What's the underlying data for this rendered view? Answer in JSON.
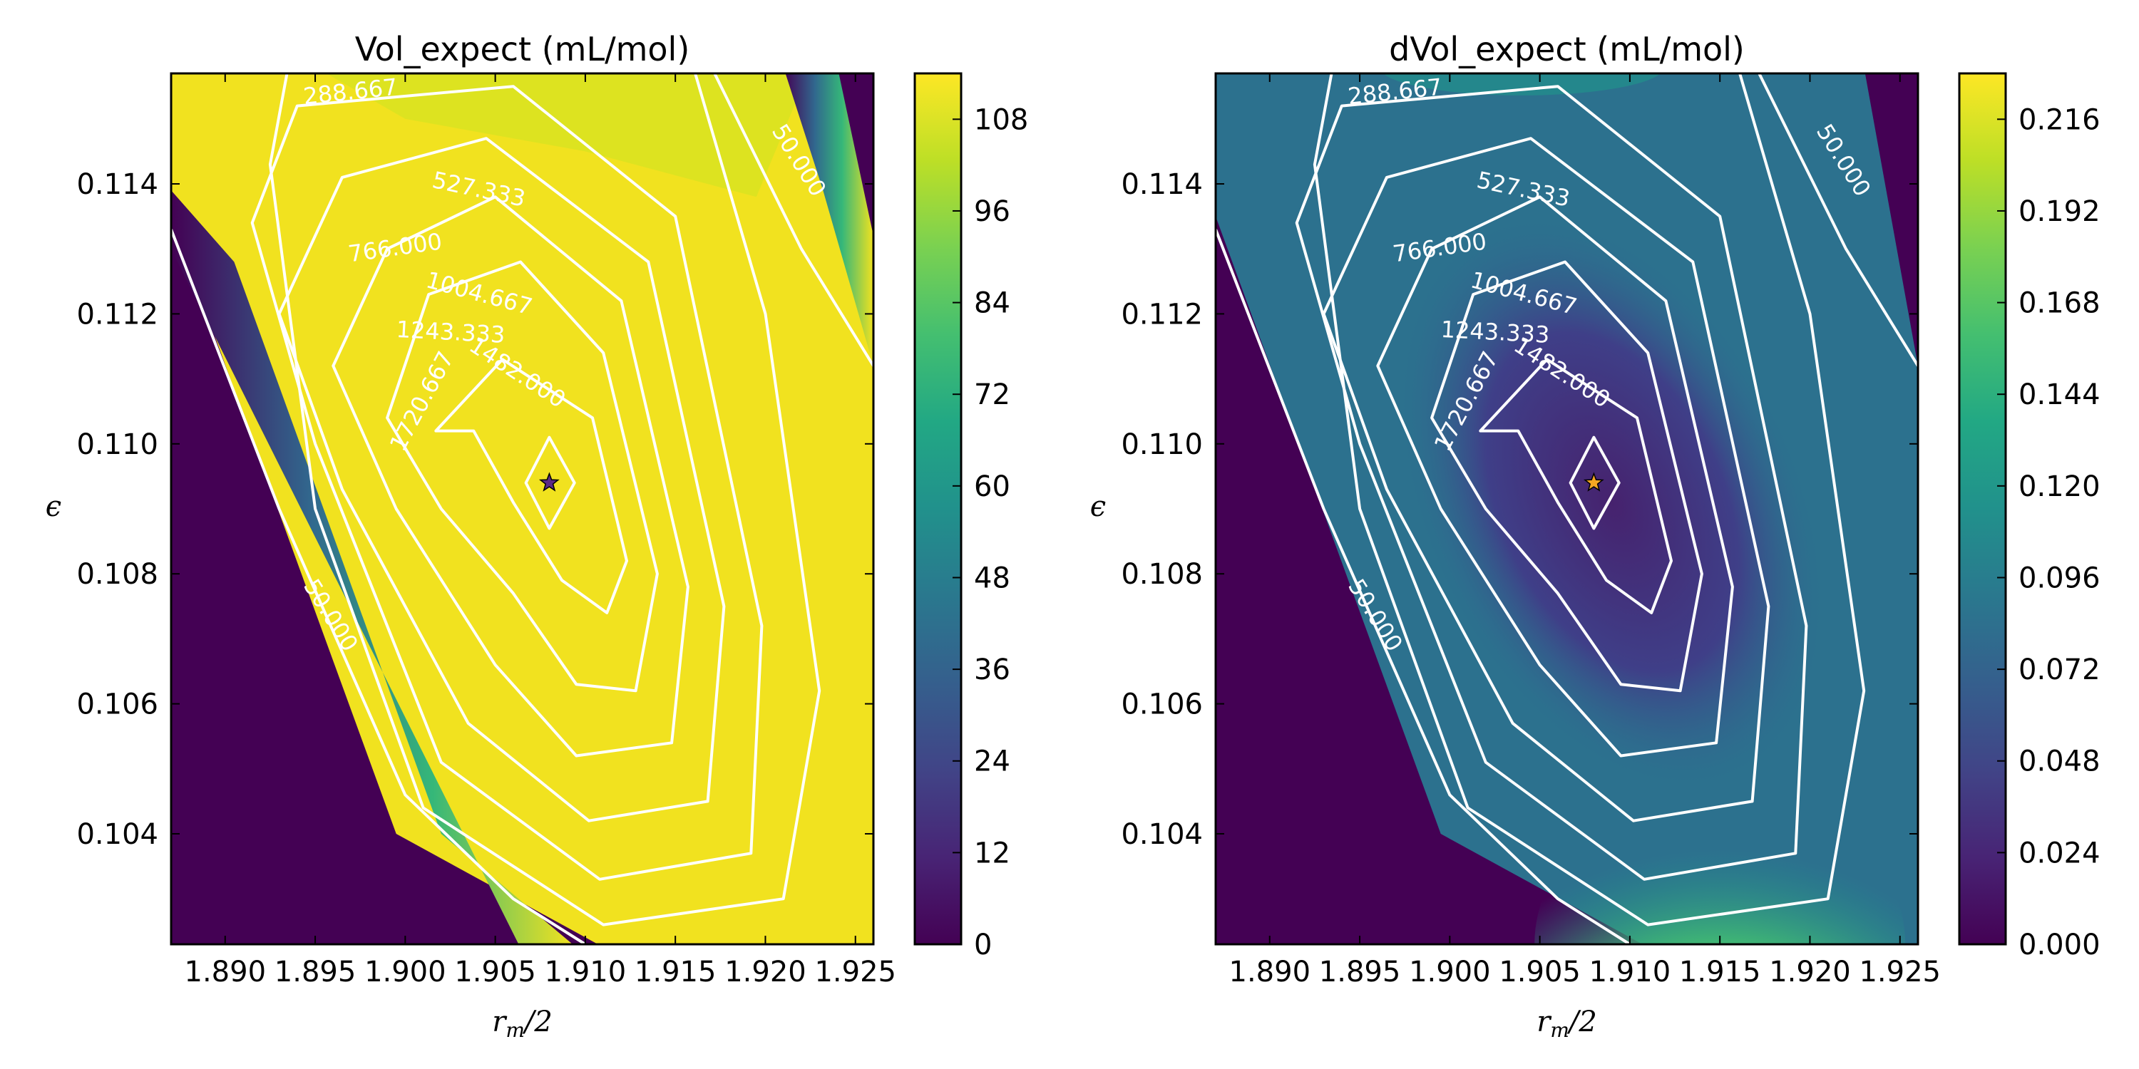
{
  "chart_data": [
    {
      "type": "contour",
      "title": "Vol_expect (mL/mol)",
      "xlabel": "r_m/2",
      "ylabel": "ϵ",
      "xlim": [
        1.887,
        1.926
      ],
      "ylim": [
        0.1023,
        0.1157
      ],
      "xticks": [
        "1.890",
        "1.895",
        "1.900",
        "1.905",
        "1.910",
        "1.915",
        "1.920",
        "1.925"
      ],
      "yticks": [
        "0.104",
        "0.106",
        "0.108",
        "0.110",
        "0.112",
        "0.114"
      ],
      "colorbar": {
        "min": 0,
        "max": 114,
        "ticks": [
          "0",
          "12",
          "24",
          "36",
          "48",
          "60",
          "72",
          "84",
          "96",
          "108"
        ],
        "colormap": "viridis"
      },
      "contour_levels": [
        "50.000",
        "288.667",
        "527.333",
        "766.000",
        "1004.667",
        "1243.333",
        "1482.000",
        "1720.667"
      ],
      "marker": {
        "x": 1.908,
        "y": 0.1094,
        "symbol": "star",
        "color": "#5b2a86"
      },
      "field": "high (≈110) in a diagonal band from lower-left to upper-right, 0 in lower-left and upper-right corners"
    },
    {
      "type": "contour",
      "title": "dVol_expect (mL/mol)",
      "xlabel": "r_m/2",
      "ylabel": "ϵ",
      "xlim": [
        1.887,
        1.926
      ],
      "ylim": [
        0.1023,
        0.1157
      ],
      "xticks": [
        "1.890",
        "1.895",
        "1.900",
        "1.905",
        "1.910",
        "1.915",
        "1.920",
        "1.925"
      ],
      "yticks": [
        "0.104",
        "0.106",
        "0.108",
        "0.110",
        "0.112",
        "0.114"
      ],
      "colorbar": {
        "min": 0,
        "max": 0.228,
        "ticks": [
          "0.000",
          "0.024",
          "0.048",
          "0.072",
          "0.096",
          "0.120",
          "0.144",
          "0.168",
          "0.192",
          "0.216"
        ],
        "colormap": "viridis"
      },
      "contour_levels": [
        "50.000",
        "288.667",
        "527.333",
        "766.000",
        "1004.667",
        "1243.333",
        "1482.000",
        "1720.667"
      ],
      "marker": {
        "x": 1.908,
        "y": 0.1094,
        "symbol": "star",
        "color": "#f5a623"
      },
      "field": "low (≈0.01–0.03) near center, rising to ≈0.07–0.09 along band edges, peak ≈0.22 near bottom-center, 0 in lower-left and upper-right corners"
    }
  ],
  "colors": {
    "viridis_dark": "#440154",
    "viridis_mid": "#21918c",
    "viridis_bright": "#fde725",
    "band_yellow": "#f1e21f",
    "contour_line": "#ffffff"
  }
}
